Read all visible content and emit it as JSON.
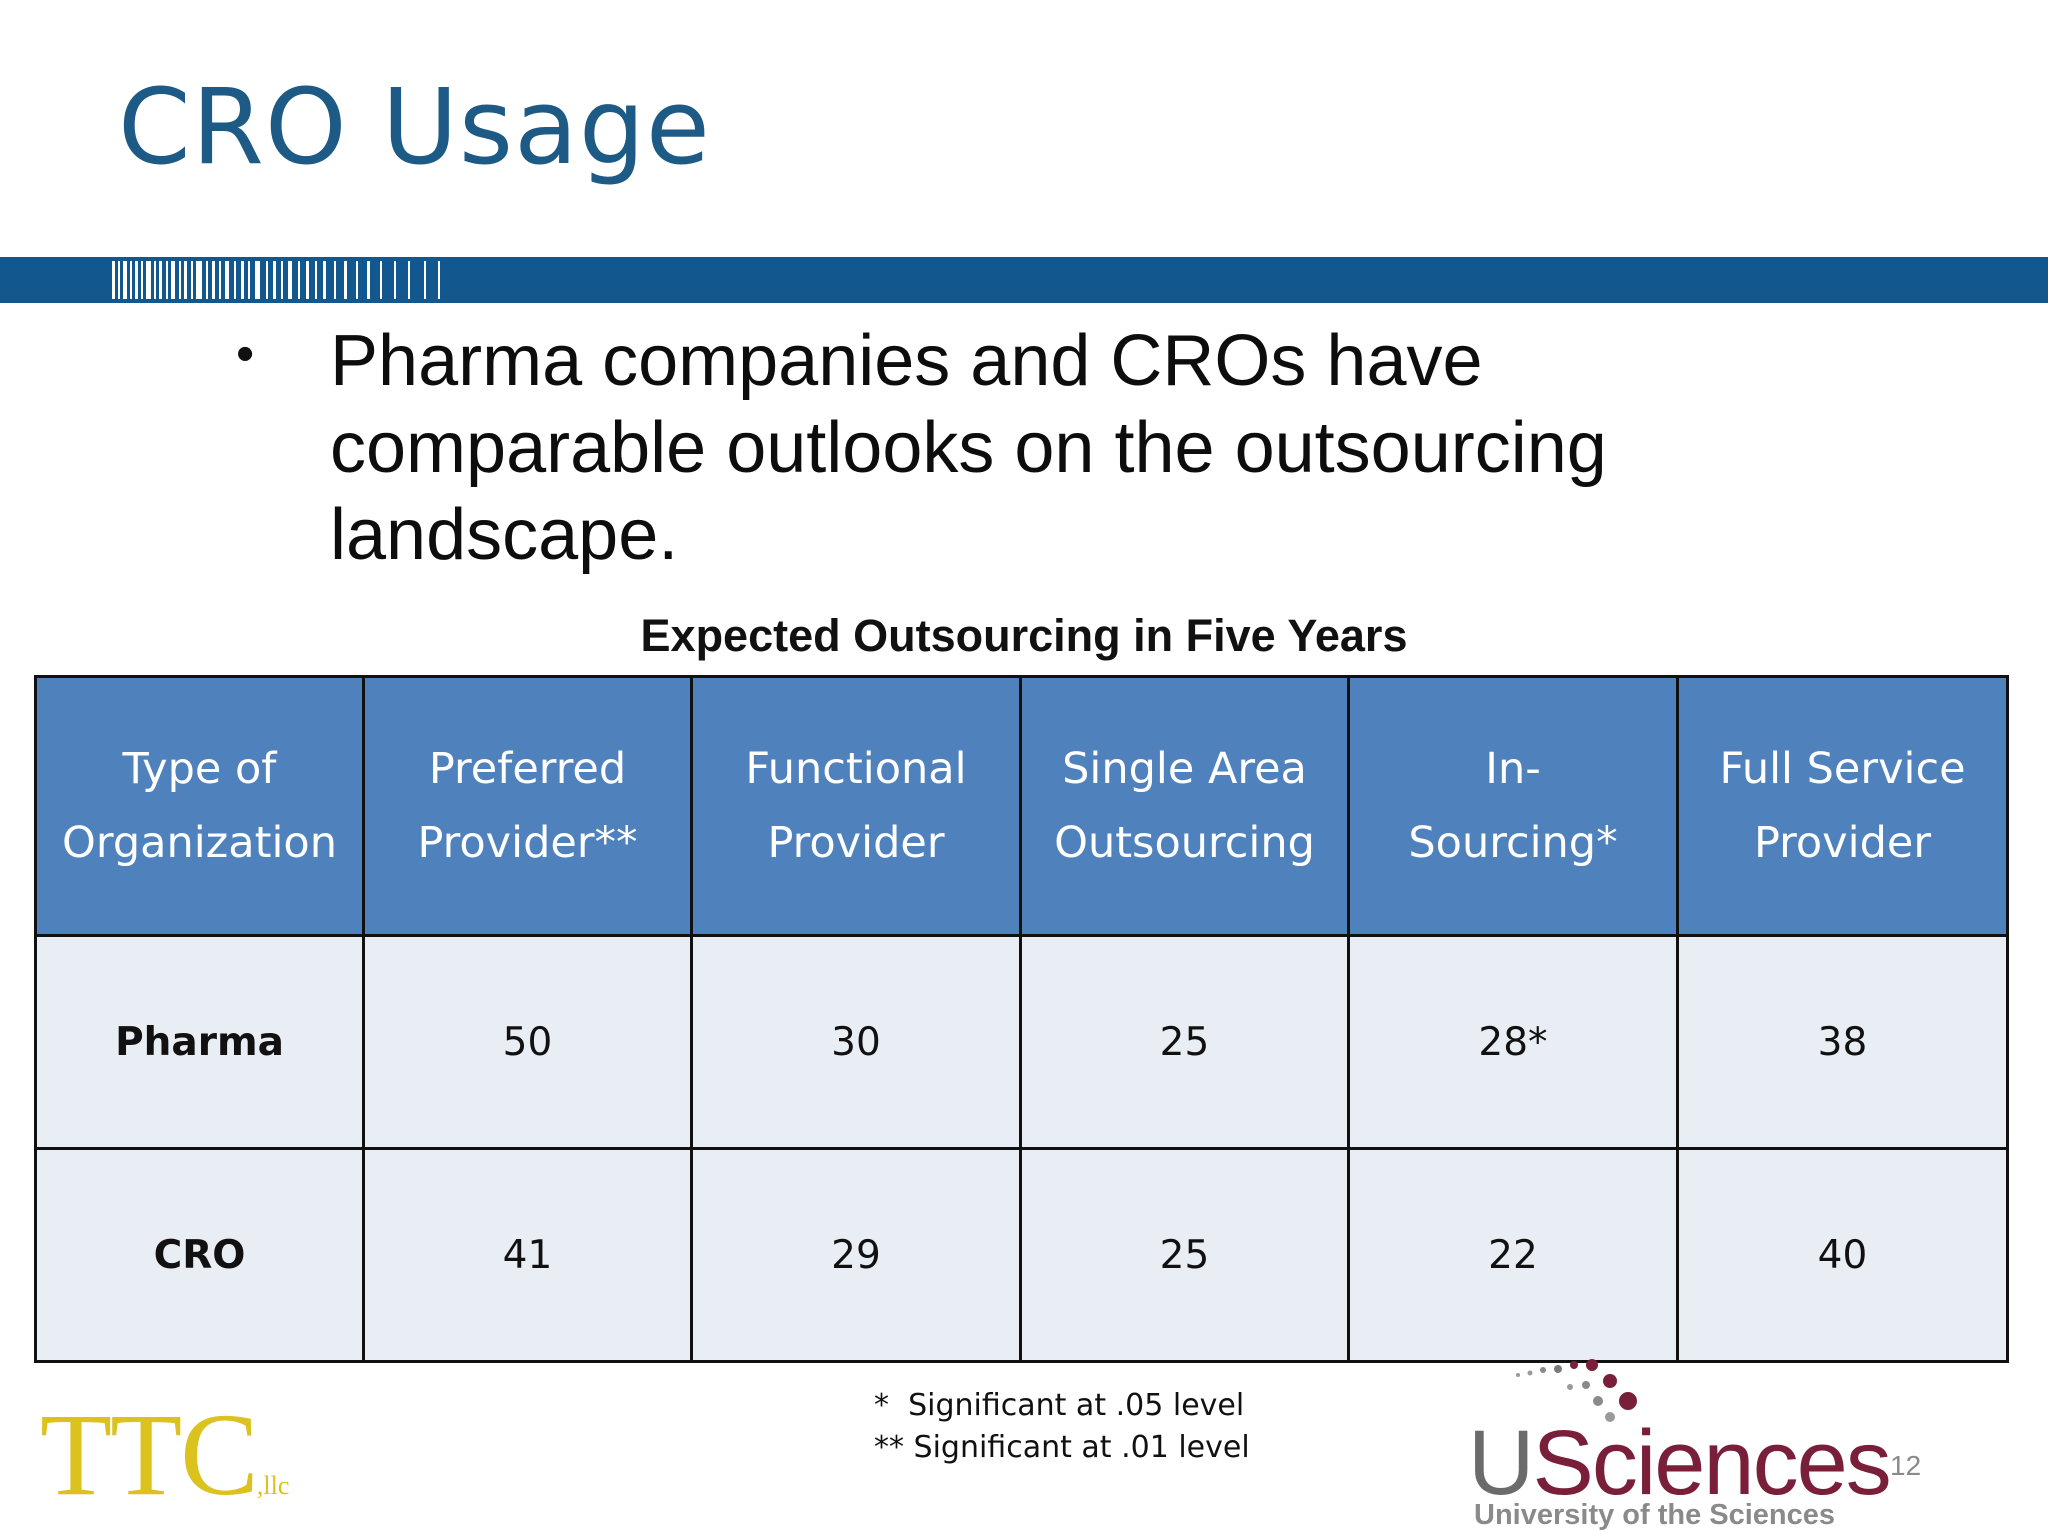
{
  "slide": {
    "title": "CRO Usage",
    "bullet": "Pharma companies and CROs have comparable outlooks on the outsourcing landscape.",
    "page_number": "12",
    "accent_color": "#12588f"
  },
  "table": {
    "caption": "Expected Outsourcing in Five Years",
    "headers": [
      [
        "Type of",
        "Organization"
      ],
      [
        "Preferred",
        "Provider**"
      ],
      [
        "Functional",
        "Provider"
      ],
      [
        "Single Area",
        "Outsourcing"
      ],
      [
        "In-",
        "Sourcing*"
      ],
      [
        "Full Service",
        "Provider"
      ]
    ],
    "rows": [
      [
        "Pharma",
        "50",
        "30",
        "25",
        "28*",
        "38"
      ],
      [
        "CRO",
        "41",
        "29",
        "25",
        "22",
        "40"
      ]
    ],
    "header_color": "#4f81bd",
    "cell_color": "#e9edf4"
  },
  "footnotes": {
    "line1": "*  Significant at .05 level",
    "line2": "** Significant at .01 level"
  },
  "logos": {
    "ttc_main": "TTC",
    "ttc_suffix": ",llc",
    "usciences_u": "U",
    "usciences_rest": "Sciences",
    "usciences_sub": "University of the Sciences"
  }
}
